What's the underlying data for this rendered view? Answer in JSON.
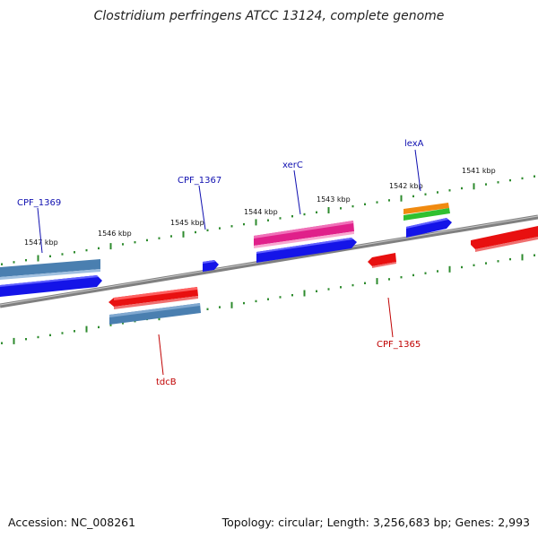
{
  "title": "Clostridium perfringens ATCC 13124, complete genome",
  "accession": "Accession: NC_008261",
  "summary": "Topology: circular; Length: 3,256,683 bp; Genes: 2,993",
  "colors": {
    "backbone": "#8a8a8a",
    "tick_green": "#2e8b2e",
    "label_blue": "#1010b0",
    "label_red": "#c00000",
    "gene_blue": "#1414e8",
    "gene_steel": "#4a7fb0",
    "gene_red": "#e81010",
    "gene_pink": "#e0208a",
    "gene_orange": "#f08a10",
    "gene_green": "#30c030"
  },
  "kbp_ticks": [
    {
      "id": "1541",
      "label": "1541 kbp"
    },
    {
      "id": "1542",
      "label": "1542 kbp"
    },
    {
      "id": "1543",
      "label": "1543 kbp"
    },
    {
      "id": "1544",
      "label": "1544 kbp"
    },
    {
      "id": "1545",
      "label": "1545 kbp"
    },
    {
      "id": "1546",
      "label": "1546 kbp"
    },
    {
      "id": "1547",
      "label": "1547 kbp"
    }
  ],
  "gene_labels": [
    {
      "id": "CPF_1369",
      "label": "CPF_1369",
      "strand": "top"
    },
    {
      "id": "CPF_1367",
      "label": "CPF_1367",
      "strand": "top"
    },
    {
      "id": "xerC",
      "label": "xerC",
      "strand": "top"
    },
    {
      "id": "lexA",
      "label": "lexA",
      "strand": "top"
    },
    {
      "id": "tdcB",
      "label": "tdcB",
      "strand": "bottom"
    },
    {
      "id": "CPF_1365",
      "label": "CPF_1365",
      "strand": "bottom"
    }
  ]
}
